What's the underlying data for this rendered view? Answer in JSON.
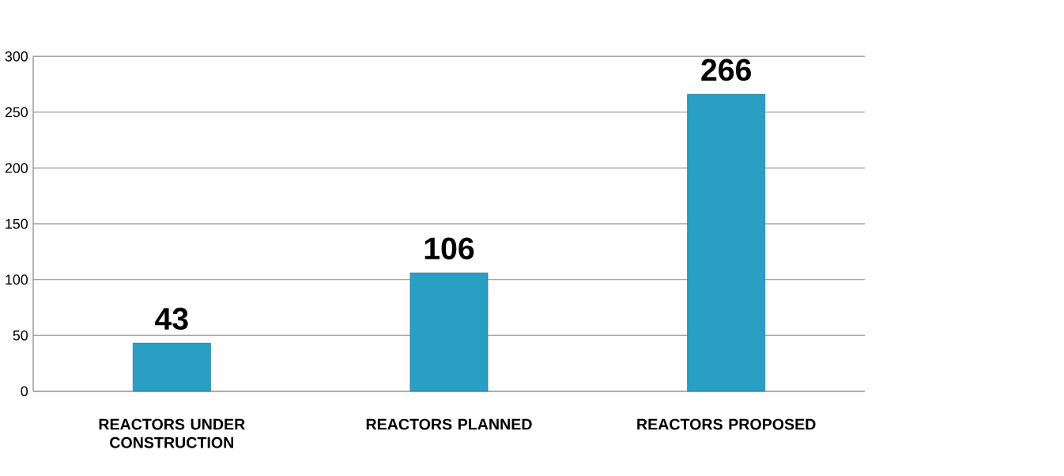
{
  "chart_data": {
    "type": "bar",
    "categories": [
      "REACTORS UNDER CONSTRUCTION",
      "REACTORS PLANNED",
      "REACTORS PROPOSED"
    ],
    "values": [
      43,
      106,
      266
    ],
    "color": "#2a9fc4",
    "ylim": [
      0,
      300
    ],
    "yticks": [
      0,
      50,
      100,
      150,
      200,
      250,
      300
    ],
    "grid": "y",
    "data_labels": true
  }
}
